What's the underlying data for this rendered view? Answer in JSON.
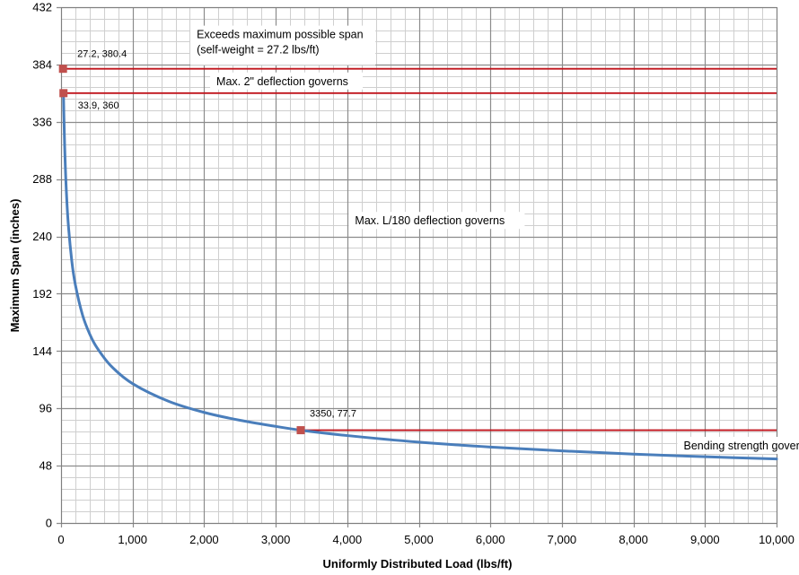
{
  "chart_data": {
    "type": "line",
    "title": "",
    "xlabel": "Uniformly Distributed Load (lbs/ft)",
    "ylabel": "Maximum Span (inches)",
    "xlim": [
      0,
      10000
    ],
    "ylim": [
      0,
      432
    ],
    "x_ticks": [
      0,
      1000,
      2000,
      3000,
      4000,
      5000,
      6000,
      7000,
      8000,
      9000,
      10000
    ],
    "x_tick_labels": [
      "0",
      "1,000",
      "2,000",
      "3,000",
      "4,000",
      "5,000",
      "6,000",
      "7,000",
      "8,000",
      "9,000",
      "10,000"
    ],
    "y_ticks": [
      0,
      48,
      96,
      144,
      192,
      240,
      288,
      336,
      384,
      432
    ],
    "y_tick_labels": [
      "0",
      "48",
      "96",
      "144",
      "192",
      "240",
      "288",
      "336",
      "384",
      "432"
    ],
    "x_minor_step": 200,
    "y_minor_step": 9.6,
    "grid": true,
    "series": [
      {
        "name": "Maximum span",
        "color": "#4a7ebb",
        "points": [
          [
            33.9,
            360
          ],
          [
            40,
            340.6
          ],
          [
            50,
            316.7
          ],
          [
            70,
            283.2
          ],
          [
            100,
            251.3
          ],
          [
            150,
            219.5
          ],
          [
            200,
            199.5
          ],
          [
            300,
            174.2
          ],
          [
            400,
            158.3
          ],
          [
            500,
            147.0
          ],
          [
            700,
            131.4
          ],
          [
            1000,
            116.7
          ],
          [
            1500,
            102.0
          ],
          [
            2000,
            92.6
          ],
          [
            2500,
            86.0
          ],
          [
            3000,
            80.9
          ],
          [
            3350,
            77.7
          ],
          [
            4000,
            73.2
          ],
          [
            5000,
            67.7
          ],
          [
            6000,
            63.6
          ],
          [
            7000,
            60.4
          ],
          [
            8000,
            57.7
          ],
          [
            9000,
            55.5
          ],
          [
            10000,
            53.6
          ]
        ]
      }
    ],
    "reference_lines": [
      {
        "name": "max-possible-span",
        "y": 380.4,
        "x_from": 27.2,
        "x_to": 10000,
        "color": "#c0141c"
      },
      {
        "name": "2in-deflection",
        "y": 360,
        "x_from": 33.9,
        "x_to": 10000,
        "color": "#c0141c"
      },
      {
        "name": "bending-strength",
        "y": 77.7,
        "x_from": 3350,
        "x_to": 10000,
        "color": "#c0141c"
      }
    ],
    "markers": [
      {
        "x": 27.2,
        "y": 380.4,
        "label": "27.2, 380.4"
      },
      {
        "x": 33.9,
        "y": 360,
        "label": "33.9, 360"
      },
      {
        "x": 3350,
        "y": 77.7,
        "label": "3350, 77.7"
      }
    ],
    "annotations": [
      {
        "name": "exceeds-max-span",
        "lines": [
          "Exceeds maximum possible span",
          "(self-weight = 27.2 lbs/ft)"
        ]
      },
      {
        "name": "deflection-2in",
        "lines": [
          "Max. 2\" deflection governs"
        ]
      },
      {
        "name": "deflection-l180",
        "lines": [
          "Max. L/180 deflection governs"
        ]
      },
      {
        "name": "bending-strength",
        "lines": [
          "Bending strength governs"
        ]
      }
    ],
    "colors": {
      "curve": "#4a7ebb",
      "ref_line": "#c0141c",
      "marker": "#c0504d",
      "major_grid": "#8c8c8c",
      "minor_grid": "#cfcfcf"
    }
  }
}
